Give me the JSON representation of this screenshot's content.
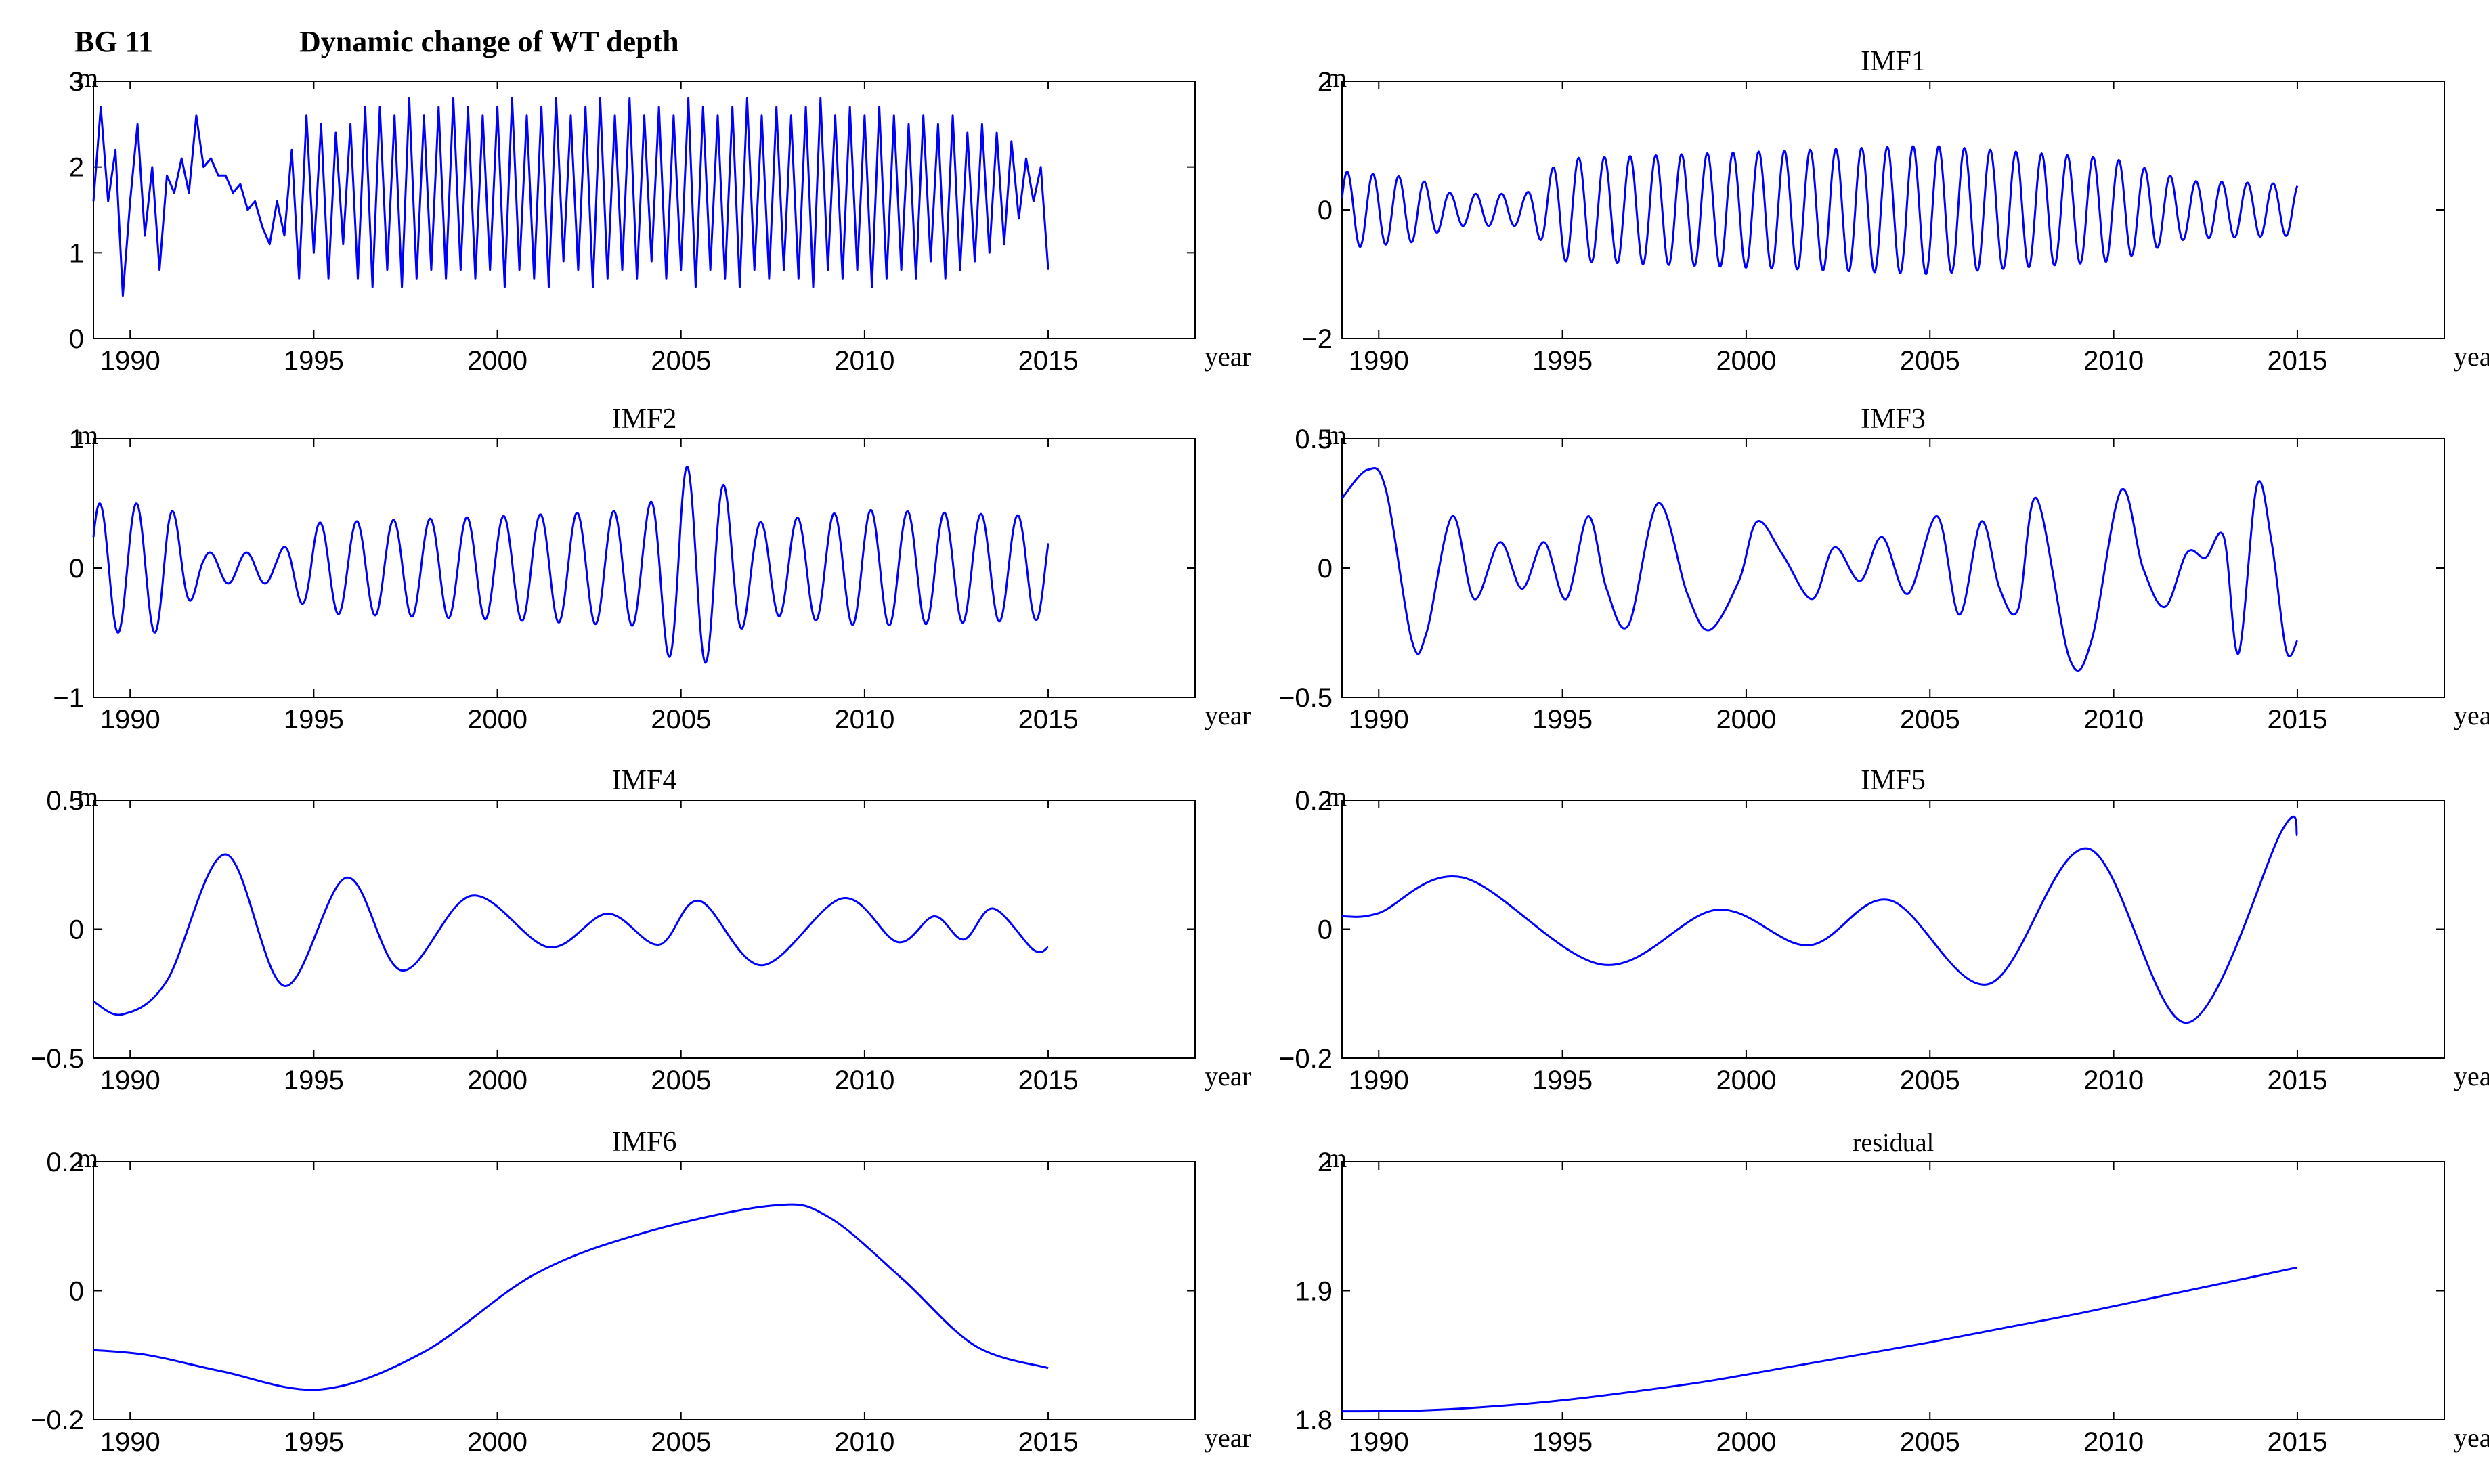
{
  "figure": {
    "station_label": "BG 11",
    "main_title": "Dynamic change of WT depth",
    "colors": {
      "series": "#0000ff",
      "axes": "#000000",
      "background": "#ffffff"
    }
  },
  "chart_data": [
    {
      "type": "line",
      "id": "original",
      "title": "",
      "unit_label": "m",
      "xlabel": "year",
      "xlim": [
        1989,
        2019
      ],
      "xticks": [
        1990,
        1995,
        2000,
        2005,
        2010,
        2015
      ],
      "ylim": [
        0,
        3
      ],
      "yticks": [
        0,
        1,
        2,
        3
      ],
      "ytick_labels": [
        "0",
        "1",
        "2",
        "3"
      ],
      "series": [
        {
          "name": "WT depth",
          "x": [
            1989.0,
            1989.2,
            1989.4,
            1989.6,
            1989.8,
            1990.0,
            1990.2,
            1990.4,
            1990.6,
            1990.8,
            1991.0,
            1991.2,
            1991.4,
            1991.6,
            1991.8,
            1992.0,
            1992.2,
            1992.4,
            1992.6,
            1992.8,
            1993.0,
            1993.2,
            1993.4,
            1993.6,
            1993.8,
            1994.0,
            1994.2,
            1994.4,
            1994.6,
            1994.8,
            1995.0,
            1995.2,
            1995.4,
            1995.6,
            1995.8,
            1996.0,
            1996.2,
            1996.4,
            1996.6,
            1996.8,
            1997.0,
            1997.2,
            1997.4,
            1997.6,
            1997.8,
            1998.0,
            1998.2,
            1998.4,
            1998.6,
            1998.8,
            1999.0,
            1999.2,
            1999.4,
            1999.6,
            1999.8,
            2000.0,
            2000.2,
            2000.4,
            2000.6,
            2000.8,
            2001.0,
            2001.2,
            2001.4,
            2001.6,
            2001.8,
            2002.0,
            2002.2,
            2002.4,
            2002.6,
            2002.8,
            2003.0,
            2003.2,
            2003.4,
            2003.6,
            2003.8,
            2004.0,
            2004.2,
            2004.4,
            2004.6,
            2004.8,
            2005.0,
            2005.2,
            2005.4,
            2005.6,
            2005.8,
            2006.0,
            2006.2,
            2006.4,
            2006.6,
            2006.8,
            2007.0,
            2007.2,
            2007.4,
            2007.6,
            2007.8,
            2008.0,
            2008.2,
            2008.4,
            2008.6,
            2008.8,
            2009.0,
            2009.2,
            2009.4,
            2009.6,
            2009.8,
            2010.0,
            2010.2,
            2010.4,
            2010.6,
            2010.8,
            2011.0,
            2011.2,
            2011.4,
            2011.6,
            2011.8,
            2012.0,
            2012.2,
            2012.4,
            2012.6,
            2012.8,
            2013.0,
            2013.2,
            2013.4,
            2013.6,
            2013.8,
            2014.0,
            2014.2,
            2014.4,
            2014.6,
            2014.8,
            2015.0
          ],
          "values": [
            1.6,
            2.7,
            1.6,
            2.2,
            0.5,
            1.6,
            2.5,
            1.2,
            2.0,
            0.8,
            1.9,
            1.7,
            2.1,
            1.7,
            2.6,
            2.0,
            2.1,
            1.9,
            1.9,
            1.7,
            1.8,
            1.5,
            1.6,
            1.3,
            1.1,
            1.6,
            1.2,
            2.2,
            0.7,
            2.6,
            1.0,
            2.5,
            0.7,
            2.4,
            1.1,
            2.5,
            0.7,
            2.7,
            0.6,
            2.7,
            0.8,
            2.6,
            0.6,
            2.8,
            0.7,
            2.6,
            0.8,
            2.7,
            0.7,
            2.8,
            0.8,
            2.7,
            0.7,
            2.6,
            0.8,
            2.7,
            0.6,
            2.8,
            0.8,
            2.6,
            0.7,
            2.7,
            0.6,
            2.8,
            0.9,
            2.6,
            0.8,
            2.7,
            0.6,
            2.8,
            0.7,
            2.6,
            0.8,
            2.8,
            0.7,
            2.6,
            0.9,
            2.7,
            0.7,
            2.6,
            0.8,
            2.8,
            0.6,
            2.7,
            0.8,
            2.6,
            0.7,
            2.7,
            0.6,
            2.8,
            0.8,
            2.6,
            0.7,
            2.7,
            0.8,
            2.6,
            0.7,
            2.7,
            0.6,
            2.8,
            0.8,
            2.6,
            0.7,
            2.7,
            0.8,
            2.6,
            0.6,
            2.7,
            0.7,
            2.6,
            0.8,
            2.5,
            0.7,
            2.6,
            0.9,
            2.5,
            0.7,
            2.6,
            0.8,
            2.4,
            0.9,
            2.5,
            1.0,
            2.4,
            1.1,
            2.3,
            1.4,
            2.1,
            1.6,
            2.0,
            0.8
          ]
        }
      ]
    },
    {
      "type": "line",
      "id": "imf1",
      "title": "IMF1",
      "unit_label": "m",
      "xlabel": "year",
      "xlim": [
        1989,
        2019
      ],
      "xticks": [
        1990,
        1995,
        2000,
        2005,
        2010,
        2015
      ],
      "ylim": [
        -2,
        2
      ],
      "yticks": [
        -2,
        0,
        2
      ],
      "ytick_labels": [
        "−2",
        "0",
        "2"
      ],
      "model": {
        "kind": "oscillation",
        "period": 0.7,
        "phase": 0.3,
        "envelope": [
          [
            1989,
            0.6
          ],
          [
            1991,
            0.5
          ],
          [
            1992,
            0.25
          ],
          [
            1994,
            0.25
          ],
          [
            1995,
            0.8
          ],
          [
            2000,
            0.9
          ],
          [
            2005,
            1.0
          ],
          [
            2010,
            0.8
          ],
          [
            2012,
            0.45
          ],
          [
            2015,
            0.4
          ]
        ]
      }
    },
    {
      "type": "line",
      "id": "imf2",
      "title": "IMF2",
      "unit_label": "m",
      "xlabel": "year",
      "xlim": [
        1989,
        2019
      ],
      "xticks": [
        1990,
        1995,
        2000,
        2005,
        2010,
        2015
      ],
      "ylim": [
        -1,
        1
      ],
      "yticks": [
        -1,
        0,
        1
      ],
      "ytick_labels": [
        "−1",
        "0",
        "1"
      ],
      "model": {
        "kind": "oscillation",
        "period": 1.0,
        "phase": 0.5,
        "envelope": [
          [
            1989,
            0.5
          ],
          [
            1991,
            0.5
          ],
          [
            1992,
            0.12
          ],
          [
            1994,
            0.12
          ],
          [
            1995,
            0.35
          ],
          [
            2000,
            0.4
          ],
          [
            2004,
            0.45
          ],
          [
            2005,
            0.8
          ],
          [
            2006,
            0.7
          ],
          [
            2007,
            0.35
          ],
          [
            2010,
            0.45
          ],
          [
            2015,
            0.4
          ]
        ]
      }
    },
    {
      "type": "line",
      "id": "imf3",
      "title": "IMF3",
      "unit_label": "m",
      "xlabel": "year",
      "xlim": [
        1989,
        2019
      ],
      "xticks": [
        1990,
        1995,
        2000,
        2005,
        2010,
        2015
      ],
      "ylim": [
        -0.5,
        0.5
      ],
      "yticks": [
        -0.5,
        0,
        0.5
      ],
      "ytick_labels": [
        "−0.5",
        "0",
        "0.5"
      ],
      "series": [
        {
          "name": "IMF3",
          "x": [
            1989.0,
            1989.7,
            1990.2,
            1990.9,
            1991.3,
            1992.0,
            1992.6,
            1993.3,
            1993.9,
            1994.5,
            1995.1,
            1995.7,
            1996.2,
            1996.8,
            1997.6,
            1998.4,
            1999.0,
            1999.8,
            2000.3,
            2001.0,
            2001.8,
            2002.4,
            2003.1,
            2003.7,
            2004.4,
            2005.2,
            2005.8,
            2006.4,
            2006.9,
            2007.4,
            2007.9,
            2008.8,
            2009.4,
            2010.2,
            2010.8,
            2011.4,
            2012.0,
            2012.5,
            2013.0,
            2013.4,
            2013.9,
            2014.3,
            2014.7,
            2015.0
          ],
          "values": [
            0.27,
            0.38,
            0.3,
            -0.28,
            -0.25,
            0.2,
            -0.12,
            0.1,
            -0.08,
            0.1,
            -0.12,
            0.2,
            -0.08,
            -0.22,
            0.25,
            -0.1,
            -0.24,
            -0.05,
            0.18,
            0.05,
            -0.12,
            0.08,
            -0.05,
            0.12,
            -0.1,
            0.2,
            -0.18,
            0.18,
            -0.08,
            -0.16,
            0.27,
            -0.35,
            -0.28,
            0.3,
            0.0,
            -0.15,
            0.06,
            0.04,
            0.12,
            -0.33,
            0.32,
            0.1,
            -0.32,
            -0.28
          ]
        }
      ]
    },
    {
      "type": "line",
      "id": "imf4",
      "title": "IMF4",
      "unit_label": "m",
      "xlabel": "year",
      "xlim": [
        1989,
        2019
      ],
      "xticks": [
        1990,
        1995,
        2000,
        2005,
        2010,
        2015
      ],
      "ylim": [
        -0.5,
        0.5
      ],
      "yticks": [
        -0.5,
        0,
        0.5
      ],
      "ytick_labels": [
        "−0.5",
        "0",
        "0.5"
      ],
      "series": [
        {
          "name": "IMF4",
          "x": [
            1989.0,
            1989.8,
            1991.0,
            1992.6,
            1994.2,
            1995.9,
            1997.4,
            1999.3,
            2001.4,
            2003.0,
            2004.4,
            2005.5,
            2007.2,
            2009.4,
            2010.9,
            2011.9,
            2012.7,
            2013.5,
            2014.6,
            2015.0
          ],
          "values": [
            -0.28,
            -0.33,
            -0.2,
            0.29,
            -0.22,
            0.2,
            -0.16,
            0.13,
            -0.07,
            0.06,
            -0.06,
            0.11,
            -0.14,
            0.12,
            -0.05,
            0.05,
            -0.04,
            0.08,
            -0.08,
            -0.07
          ]
        }
      ]
    },
    {
      "type": "line",
      "id": "imf5",
      "title": "IMF5",
      "unit_label": "m",
      "xlabel": "year",
      "xlim": [
        1989,
        2019
      ],
      "xticks": [
        1990,
        1995,
        2000,
        2005,
        2010,
        2015
      ],
      "ylim": [
        -0.2,
        0.2
      ],
      "yticks": [
        -0.2,
        0,
        0.2
      ],
      "ytick_labels": [
        "−0.2",
        "0",
        "0.2"
      ],
      "series": [
        {
          "name": "IMF5",
          "x": [
            1989.0,
            1990.0,
            1992.3,
            1996.1,
            1999.2,
            2001.7,
            2003.9,
            2006.6,
            2009.3,
            2012.0,
            2014.6,
            2015.0
          ],
          "values": [
            0.02,
            0.025,
            0.08,
            -0.055,
            0.03,
            -0.025,
            0.045,
            -0.085,
            0.125,
            -0.145,
            0.155,
            0.145
          ]
        }
      ]
    },
    {
      "type": "line",
      "id": "imf6",
      "title": "IMF6",
      "unit_label": "m",
      "xlabel": "year",
      "xlim": [
        1989,
        2019
      ],
      "xticks": [
        1990,
        1995,
        2000,
        2005,
        2010,
        2015
      ],
      "ylim": [
        -0.2,
        0.2
      ],
      "yticks": [
        -0.2,
        0,
        0.2
      ],
      "ytick_labels": [
        "−0.2",
        "0",
        "0.2"
      ],
      "series": [
        {
          "name": "IMF6",
          "x": [
            1989.0,
            1990.5,
            1992.5,
            1995.2,
            1998.0,
            2001.0,
            2004.0,
            2007.5,
            2009.0,
            2011.0,
            2013.0,
            2015.0
          ],
          "values": [
            -0.092,
            -0.1,
            -0.125,
            -0.153,
            -0.095,
            0.025,
            0.09,
            0.132,
            0.115,
            0.02,
            -0.085,
            -0.12
          ]
        }
      ]
    },
    {
      "type": "line",
      "id": "residual",
      "title": "residual",
      "unit_label": "m",
      "xlabel": "year",
      "xlim": [
        1989,
        2019
      ],
      "xticks": [
        1990,
        1995,
        2000,
        2005,
        2010,
        2015
      ],
      "ylim": [
        1.8,
        2
      ],
      "yticks": [
        1.8,
        1.9,
        2
      ],
      "ytick_labels": [
        "1.8",
        "1.9",
        "2"
      ],
      "series": [
        {
          "name": "residual",
          "x": [
            1989.0,
            1991.0,
            1993.0,
            1995.0,
            1997.0,
            1999.0,
            2001.0,
            2003.0,
            2005.0,
            2007.0,
            2009.0,
            2011.0,
            2013.0,
            2015.0
          ],
          "values": [
            1.8065,
            1.807,
            1.81,
            1.815,
            1.822,
            1.83,
            1.84,
            1.85,
            1.86,
            1.871,
            1.882,
            1.894,
            1.906,
            1.918
          ]
        }
      ]
    }
  ]
}
